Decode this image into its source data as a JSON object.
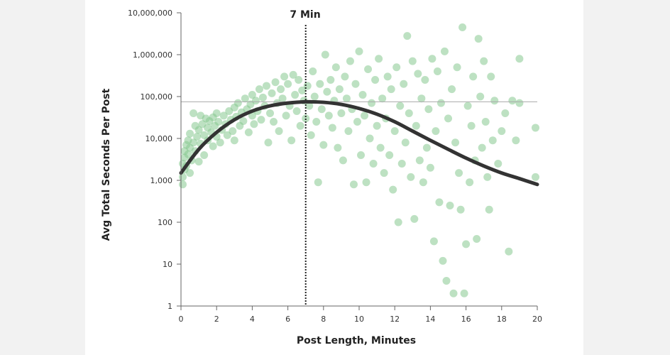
{
  "chart_data": {
    "type": "scatter",
    "xlabel": "Post Length, Minutes",
    "ylabel": "Avg Total Seconds Per Post",
    "xlim": [
      0,
      20
    ],
    "ylim": [
      1,
      10000000
    ],
    "yscale": "log",
    "x_ticks": [
      "0",
      "2",
      "4",
      "6",
      "8",
      "10",
      "12",
      "14",
      "16",
      "18",
      "20"
    ],
    "y_ticks": [
      "1",
      "10",
      "100",
      "1,000",
      "10,000",
      "100,000",
      "1,000,000",
      "10,000,000"
    ],
    "marker": {
      "x": 7,
      "label": "7 Min"
    },
    "reference_line_y": 75000,
    "colors": {
      "points": "#86c990",
      "curve": "#333333",
      "marker": "#222222"
    },
    "trend_curve": {
      "x": [
        0,
        1,
        2,
        3,
        4,
        5,
        6,
        7,
        8,
        9,
        10,
        11,
        12,
        13,
        14,
        15,
        16,
        17,
        18,
        19,
        20
      ],
      "y": [
        1500,
        5500,
        14000,
        28000,
        45000,
        60000,
        70000,
        75000,
        73000,
        65000,
        52000,
        38000,
        25000,
        15000,
        9000,
        5500,
        3400,
        2200,
        1500,
        1100,
        800
      ]
    },
    "points": [
      [
        0.1,
        1200
      ],
      [
        0.1,
        2500
      ],
      [
        0.1,
        800
      ],
      [
        0.2,
        3500
      ],
      [
        0.2,
        1800
      ],
      [
        0.2,
        5000
      ],
      [
        0.3,
        7000
      ],
      [
        0.3,
        2200
      ],
      [
        0.4,
        4200
      ],
      [
        0.4,
        9000
      ],
      [
        0.5,
        1500
      ],
      [
        0.5,
        6000
      ],
      [
        0.5,
        13000
      ],
      [
        0.6,
        3000
      ],
      [
        0.7,
        40000
      ],
      [
        0.7,
        8000
      ],
      [
        0.8,
        20000
      ],
      [
        0.8,
        5000
      ],
      [
        0.9,
        11000
      ],
      [
        1.0,
        2800
      ],
      [
        1.0,
        16000
      ],
      [
        1.1,
        35000
      ],
      [
        1.1,
        7500
      ],
      [
        1.2,
        22000
      ],
      [
        1.3,
        12000
      ],
      [
        1.3,
        4000
      ],
      [
        1.4,
        30000
      ],
      [
        1.5,
        9000
      ],
      [
        1.5,
        18000
      ],
      [
        1.6,
        26000
      ],
      [
        1.7,
        14000
      ],
      [
        1.8,
        6500
      ],
      [
        1.8,
        32000
      ],
      [
        1.9,
        20000
      ],
      [
        2.0,
        11000
      ],
      [
        2.0,
        40000
      ],
      [
        2.1,
        25000
      ],
      [
        2.2,
        8000
      ],
      [
        2.3,
        16000
      ],
      [
        2.4,
        35000
      ],
      [
        2.5,
        22000
      ],
      [
        2.6,
        12000
      ],
      [
        2.7,
        45000
      ],
      [
        2.8,
        28000
      ],
      [
        2.9,
        15000
      ],
      [
        3.0,
        55000
      ],
      [
        3.0,
        9000
      ],
      [
        3.1,
        33000
      ],
      [
        3.2,
        70000
      ],
      [
        3.3,
        20000
      ],
      [
        3.4,
        42000
      ],
      [
        3.5,
        26000
      ],
      [
        3.6,
        90000
      ],
      [
        3.7,
        50000
      ],
      [
        3.8,
        14000
      ],
      [
        3.9,
        65000
      ],
      [
        4.0,
        35000
      ],
      [
        4.0,
        110000
      ],
      [
        4.1,
        22000
      ],
      [
        4.2,
        80000
      ],
      [
        4.3,
        45000
      ],
      [
        4.4,
        150000
      ],
      [
        4.5,
        28000
      ],
      [
        4.6,
        95000
      ],
      [
        4.7,
        60000
      ],
      [
        4.8,
        180000
      ],
      [
        4.9,
        8000
      ],
      [
        5.0,
        40000
      ],
      [
        5.1,
        120000
      ],
      [
        5.2,
        25000
      ],
      [
        5.3,
        220000
      ],
      [
        5.4,
        70000
      ],
      [
        5.5,
        15000
      ],
      [
        5.6,
        150000
      ],
      [
        5.7,
        90000
      ],
      [
        5.8,
        300000
      ],
      [
        5.9,
        35000
      ],
      [
        6.0,
        200000
      ],
      [
        6.1,
        60000
      ],
      [
        6.2,
        9000
      ],
      [
        6.3,
        330000
      ],
      [
        6.4,
        110000
      ],
      [
        6.5,
        45000
      ],
      [
        6.6,
        250000
      ],
      [
        6.7,
        20000
      ],
      [
        6.8,
        140000
      ],
      [
        6.9,
        80000
      ],
      [
        7.0,
        30000
      ],
      [
        7.1,
        180000
      ],
      [
        7.2,
        60000
      ],
      [
        7.3,
        12000
      ],
      [
        7.4,
        400000
      ],
      [
        7.5,
        100000
      ],
      [
        7.6,
        25000
      ],
      [
        7.7,
        900
      ],
      [
        7.8,
        200000
      ],
      [
        7.9,
        50000
      ],
      [
        8.0,
        7000
      ],
      [
        8.1,
        1000000
      ],
      [
        8.2,
        130000
      ],
      [
        8.3,
        35000
      ],
      [
        8.4,
        250000
      ],
      [
        8.5,
        18000
      ],
      [
        8.6,
        80000
      ],
      [
        8.7,
        500000
      ],
      [
        8.8,
        6000
      ],
      [
        8.9,
        150000
      ],
      [
        9.0,
        40000
      ],
      [
        9.1,
        3000
      ],
      [
        9.2,
        300000
      ],
      [
        9.3,
        90000
      ],
      [
        9.4,
        15000
      ],
      [
        9.5,
        700000
      ],
      [
        9.6,
        50000
      ],
      [
        9.7,
        800
      ],
      [
        9.8,
        200000
      ],
      [
        9.9,
        25000
      ],
      [
        10.0,
        1200000
      ],
      [
        10.1,
        4000
      ],
      [
        10.2,
        110000
      ],
      [
        10.3,
        35000
      ],
      [
        10.4,
        900
      ],
      [
        10.5,
        450000
      ],
      [
        10.6,
        10000
      ],
      [
        10.7,
        70000
      ],
      [
        10.8,
        2500
      ],
      [
        10.9,
        250000
      ],
      [
        11.0,
        20000
      ],
      [
        11.1,
        800000
      ],
      [
        11.2,
        6000
      ],
      [
        11.3,
        90000
      ],
      [
        11.4,
        1500
      ],
      [
        11.5,
        30000
      ],
      [
        11.6,
        300000
      ],
      [
        11.7,
        4000
      ],
      [
        11.8,
        150000
      ],
      [
        11.9,
        600
      ],
      [
        12.0,
        15000
      ],
      [
        12.1,
        500000
      ],
      [
        12.2,
        100
      ],
      [
        12.3,
        60000
      ],
      [
        12.4,
        2500
      ],
      [
        12.5,
        200000
      ],
      [
        12.6,
        8000
      ],
      [
        12.7,
        2800000
      ],
      [
        12.8,
        40000
      ],
      [
        12.9,
        1200
      ],
      [
        13.0,
        700000
      ],
      [
        13.1,
        120
      ],
      [
        13.2,
        20000
      ],
      [
        13.3,
        350000
      ],
      [
        13.4,
        3000
      ],
      [
        13.5,
        90000
      ],
      [
        13.6,
        900
      ],
      [
        13.7,
        250000
      ],
      [
        13.8,
        6000
      ],
      [
        13.9,
        50000
      ],
      [
        14.0,
        2000
      ],
      [
        14.1,
        800000
      ],
      [
        14.2,
        35
      ],
      [
        14.3,
        15000
      ],
      [
        14.4,
        400000
      ],
      [
        14.5,
        300
      ],
      [
        14.6,
        70000
      ],
      [
        14.7,
        12
      ],
      [
        14.8,
        1200000
      ],
      [
        14.9,
        4
      ],
      [
        15.0,
        30000
      ],
      [
        15.1,
        250
      ],
      [
        15.2,
        150000
      ],
      [
        15.3,
        2
      ],
      [
        15.4,
        8000
      ],
      [
        15.5,
        500000
      ],
      [
        15.6,
        1500
      ],
      [
        15.7,
        200
      ],
      [
        15.8,
        4500000
      ],
      [
        15.9,
        2
      ],
      [
        16.0,
        30
      ],
      [
        16.1,
        60000
      ],
      [
        16.2,
        900
      ],
      [
        16.3,
        20000
      ],
      [
        16.4,
        300000
      ],
      [
        16.5,
        3000
      ],
      [
        16.6,
        40
      ],
      [
        16.7,
        2400000
      ],
      [
        16.8,
        100000
      ],
      [
        16.9,
        6000
      ],
      [
        17.0,
        700000
      ],
      [
        17.1,
        25000
      ],
      [
        17.2,
        1200
      ],
      [
        17.3,
        200
      ],
      [
        17.4,
        300000
      ],
      [
        17.5,
        9000
      ],
      [
        17.6,
        80000
      ],
      [
        17.8,
        2500
      ],
      [
        18.0,
        15000
      ],
      [
        18.2,
        40000
      ],
      [
        18.4,
        20
      ],
      [
        18.6,
        80000
      ],
      [
        18.8,
        9000
      ],
      [
        19.0,
        800000
      ],
      [
        19.0,
        70000
      ],
      [
        19.9,
        18000
      ],
      [
        19.9,
        1200
      ]
    ]
  }
}
